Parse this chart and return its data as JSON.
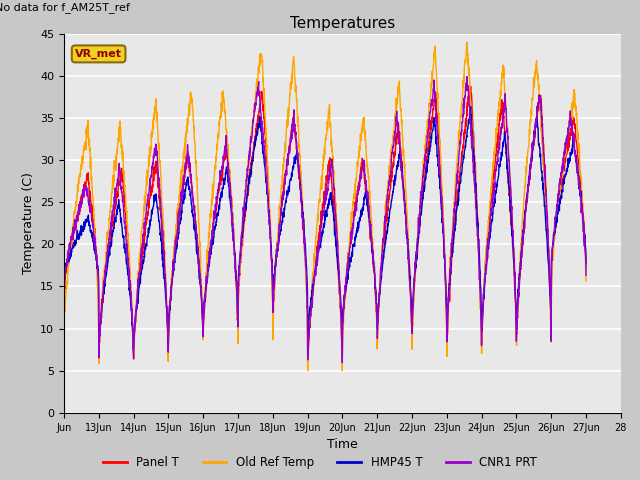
{
  "title": "Temperatures",
  "xlabel": "Time",
  "ylabel": "Temperature (C)",
  "annotation_top_left": "No data for f_AM25T_ref",
  "legend_label_top": "VR_met",
  "ylim": [
    0,
    45
  ],
  "yticks": [
    0,
    5,
    10,
    15,
    20,
    25,
    30,
    35,
    40,
    45
  ],
  "xtick_labels": [
    "Jun",
    "13Jun",
    "14Jun",
    "15Jun",
    "16Jun",
    "17Jun",
    "18Jun",
    "19Jun",
    "20Jun",
    "21Jun",
    "22Jun",
    "23Jun",
    "24Jun",
    "25Jun",
    "26Jun",
    "27Jun",
    "28"
  ],
  "fig_facecolor": "#c8c8c8",
  "ax_facecolor": "#e8e8e8",
  "grid_color": "white",
  "series": [
    {
      "name": "Panel T",
      "color": "#ff0000",
      "lw": 1.0
    },
    {
      "name": "Old Ref Temp",
      "color": "#ffa500",
      "lw": 1.0
    },
    {
      "name": "HMP45 T",
      "color": "#0000cc",
      "lw": 1.0
    },
    {
      "name": "CNR1 PRT",
      "color": "#9900cc",
      "lw": 1.0
    }
  ],
  "n_days": 15,
  "points_per_day": 144,
  "seed": 12345
}
